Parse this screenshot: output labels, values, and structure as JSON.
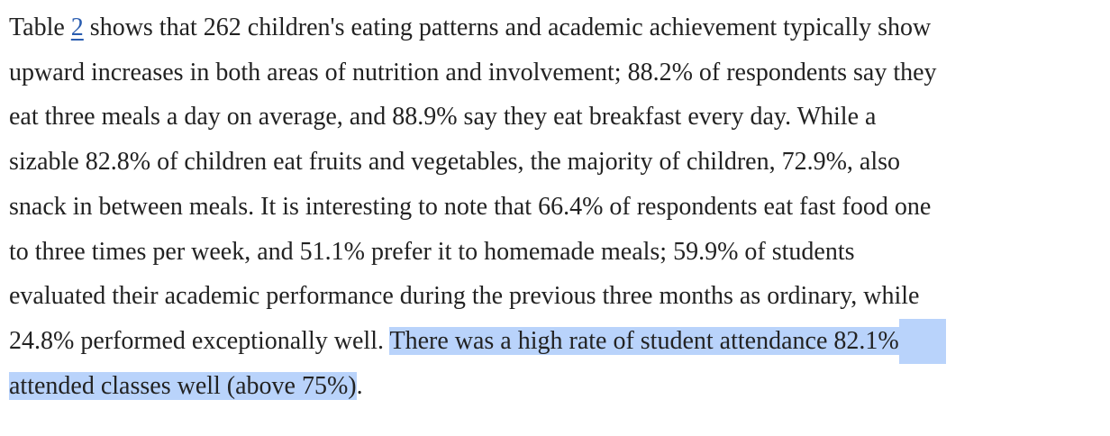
{
  "paragraph": {
    "l1_pre": "Table ",
    "table_ref": "2",
    "l1_post": " shows that 262 children's eating patterns and academic achievement typically show",
    "l2": "upward increases in both areas of nutrition and involvement; 88.2% of respondents say they",
    "l3": "eat three meals a day on average, and 88.9% say they eat breakfast every day. While a",
    "l4": "sizable 82.8% of children eat fruits and vegetables, the majority of children, 72.9%, also",
    "l5": "snack in between meals. It is interesting to note that 66.4% of respondents eat fast food one",
    "l6": "to three times per week, and 51.1% prefer it to homemade meals; 59.9% of students",
    "l7": "evaluated their academic performance during the previous three months as ordinary, while",
    "l8_pre": "24.8% performed exceptionally well. ",
    "l8_hl": "There was a high rate of student attendance 82.1%",
    "l9_hl": "attended classes well (above 75%)",
    "l9_post": "."
  },
  "colors": {
    "text": "#222222",
    "link": "#2a5db0",
    "highlight": "#b9d3fb"
  }
}
